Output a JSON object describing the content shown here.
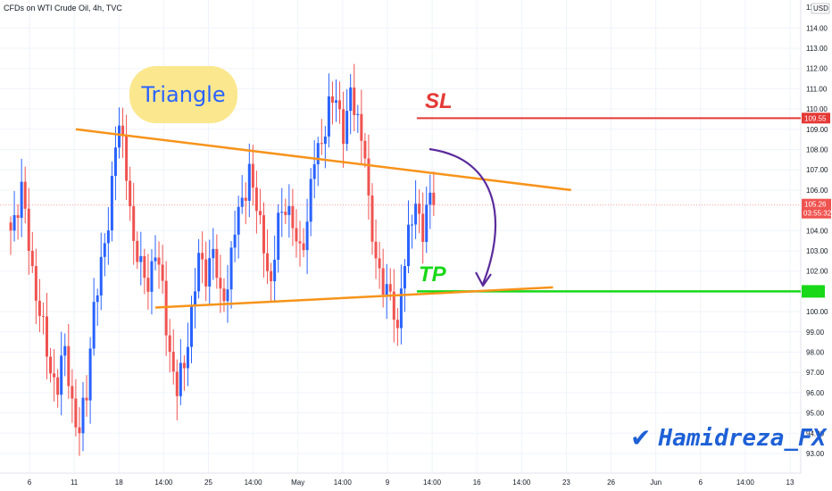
{
  "header": {
    "title": "CFDs on WTI Crude Oil, 4h, TVC"
  },
  "annotations": {
    "triangle": "Triangle",
    "sl": "SL",
    "tp": "TP",
    "watermark": "Hamidreza_FX"
  },
  "price_axis": {
    "currency": "USD",
    "ticks": [
      "114.00",
      "113.00",
      "112.00",
      "111.00",
      "110.00",
      "109.00",
      "108.00",
      "107.00",
      "106.00",
      "104.00",
      "103.00",
      "102.00",
      "100.00",
      "99.00",
      "98.00",
      "97.00",
      "96.00",
      "95.00",
      "94.00",
      "93.00"
    ]
  },
  "price_badges": {
    "sl": {
      "value": "109.55"
    },
    "last": {
      "value": "105.26",
      "countdown": "03:55:32"
    }
  },
  "time_axis": {
    "labels": [
      "6",
      "11",
      "18",
      "14:00",
      "25",
      "14:00",
      "May",
      "14:00",
      "9",
      "14:00",
      "16",
      "14:00",
      "23",
      "26",
      "Jun",
      "6",
      "14:00",
      "13"
    ]
  },
  "colors": {
    "up": "#2962ff",
    "down": "#ef5350",
    "triangle_lines": "#f7931a",
    "sl_line": "#e53935",
    "tp_line": "#18d818",
    "arrow": "#5b2b9c"
  },
  "chart_data": {
    "type": "candlestick",
    "symbol": "CFDs on WTI Crude Oil",
    "timeframe": "4h",
    "y_unit": "USD",
    "ylim": [
      92.5,
      115
    ],
    "levels": {
      "stop_loss": 109.55,
      "take_profit": 101.0,
      "last_price": 105.26
    },
    "triangle": {
      "upper_trendline": [
        [
          18,
          109.0
        ],
        [
          155,
          106.0
        ]
      ],
      "lower_trendline": [
        [
          40,
          100.2
        ],
        [
          150,
          101.2
        ]
      ]
    },
    "anchors": [
      [
        0,
        104.0
      ],
      [
        3,
        106.0
      ],
      [
        6,
        102.0
      ],
      [
        8,
        100.0
      ],
      [
        11,
        97.0
      ],
      [
        13,
        96.5
      ],
      [
        15,
        98.0
      ],
      [
        17,
        95.5
      ],
      [
        19,
        94.0
      ],
      [
        21,
        96.0
      ],
      [
        23,
        100.5
      ],
      [
        25,
        102.0
      ],
      [
        27,
        104.5
      ],
      [
        29,
        108.5
      ],
      [
        30,
        109.0
      ],
      [
        32,
        107.0
      ],
      [
        34,
        103.5
      ],
      [
        36,
        102.0
      ],
      [
        38,
        101.5
      ],
      [
        40,
        103.0
      ],
      [
        42,
        101.0
      ],
      [
        44,
        98.0
      ],
      [
        46,
        96.0
      ],
      [
        48,
        97.5
      ],
      [
        50,
        100.0
      ],
      [
        52,
        102.5
      ],
      [
        54,
        102.0
      ],
      [
        56,
        103.0
      ],
      [
        58,
        100.5
      ],
      [
        60,
        101.5
      ],
      [
        62,
        104.0
      ],
      [
        64,
        105.5
      ],
      [
        66,
        107.0
      ],
      [
        68,
        105.0
      ],
      [
        70,
        103.5
      ],
      [
        72,
        101.0
      ],
      [
        74,
        104.5
      ],
      [
        76,
        105.5
      ],
      [
        78,
        104.0
      ],
      [
        80,
        103.0
      ],
      [
        82,
        104.5
      ],
      [
        84,
        107.5
      ],
      [
        86,
        108.5
      ],
      [
        88,
        110.0
      ],
      [
        90,
        110.5
      ],
      [
        92,
        109.0
      ],
      [
        94,
        110.5
      ],
      [
        96,
        109.5
      ],
      [
        98,
        108.0
      ],
      [
        99,
        105.0
      ],
      [
        100,
        103.5
      ],
      [
        102,
        102.0
      ],
      [
        104,
        101.0
      ],
      [
        106,
        100.0
      ],
      [
        107,
        99.0
      ],
      [
        108,
        101.5
      ],
      [
        110,
        103.5
      ],
      [
        112,
        105.5
      ],
      [
        114,
        104.0
      ],
      [
        116,
        105.5
      ],
      [
        117,
        105.26
      ]
    ]
  }
}
